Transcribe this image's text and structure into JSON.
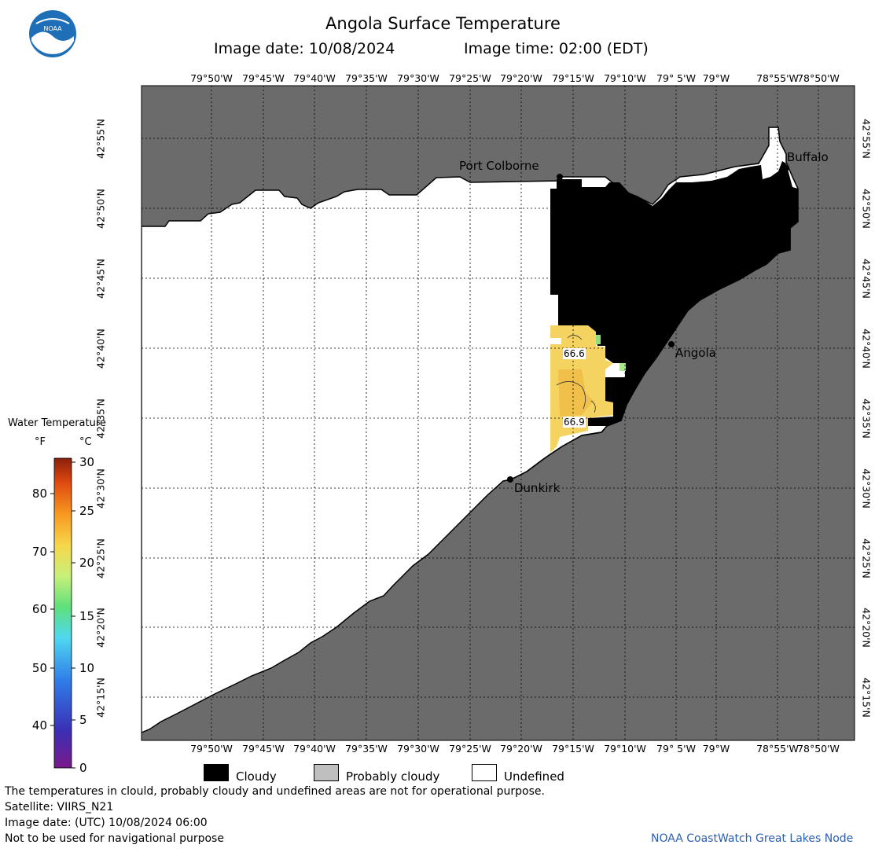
{
  "header": {
    "logo_text": "NOAA",
    "title": "Angola Surface Temperature",
    "image_date": "Image date: 10/08/2024",
    "image_time": "Image time: 02:00 (EDT)"
  },
  "map": {
    "lon_labels": [
      "79°50'W",
      "79°45'W",
      "79°40'W",
      "79°35'W",
      "79°30'W",
      "79°25'W",
      "79°20'W",
      "79°15'W",
      "79°10'W",
      "79° 5'W",
      "79°W",
      "78°55'W",
      "78°50'W"
    ],
    "lat_labels": [
      "42°55'N",
      "42°50'N",
      "42°45'N",
      "42°40'N",
      "42°35'N",
      "42°30'N",
      "42°25'N",
      "42°20'N",
      "42°15'N"
    ],
    "places": {
      "port_colborne": "Port Colborne",
      "buffalo": "Buffalo",
      "angola": "Angola",
      "dunkirk": "Dunkirk"
    },
    "temperature_labels": [
      "66.6",
      "66.9"
    ],
    "colors": {
      "land": "#6b6b6b",
      "undefined_water": "#ffffff",
      "cloud": "#000000",
      "water_warm": "#f5d361"
    }
  },
  "colorbar": {
    "title": "Water Temperature",
    "unit_f": "°F",
    "unit_c": "°C",
    "f_ticks": [
      "80",
      "70",
      "60",
      "50",
      "40"
    ],
    "c_ticks": [
      "30",
      "25",
      "20",
      "15",
      "10",
      "5",
      "0"
    ]
  },
  "legend": {
    "cloudy": "Cloudy",
    "probably_cloudy": "Probably cloudy",
    "undefined": "Undefined",
    "colors": {
      "cloudy": "#000000",
      "probably_cloudy": "#bfbfbf",
      "undefined": "#ffffff"
    }
  },
  "footer": {
    "line1": "The temperatures in clould, probably cloudy and undefined areas are not for operational purpose.",
    "line2": "Satellite: VIIRS_N21",
    "line3": "Image date: (UTC) 10/08/2024  06:00",
    "line4": "Not to be used for navigational purpose",
    "credit": "NOAA CoastWatch Great Lakes Node"
  }
}
